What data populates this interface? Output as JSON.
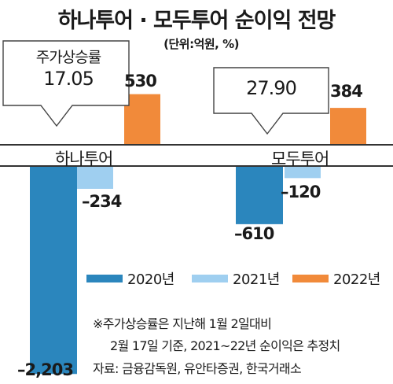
{
  "chart_data": {
    "type": "bar",
    "title": "하나투어 · 모두투어 순이익 전망",
    "unit": "(단위:억원, %)",
    "categories": [
      "하나투어",
      "모두투어"
    ],
    "series": [
      {
        "name": "2020년",
        "values": [
          -2203,
          -610
        ],
        "labels": [
          "–2,203",
          "–610"
        ],
        "color": "#2b86bd"
      },
      {
        "name": "2021년",
        "values": [
          -234,
          -120
        ],
        "labels": [
          "–234",
          "–120"
        ],
        "color": "#9fcff0"
      },
      {
        "name": "2022년",
        "values": [
          530,
          384
        ],
        "labels": [
          "530",
          "384"
        ],
        "color": "#f18a3a"
      }
    ],
    "callouts": [
      {
        "label": "주가상승률",
        "value": "17.05"
      },
      {
        "label": "",
        "value": "27.90"
      }
    ],
    "notes": [
      "※주가상승률은 지난해 1월 2일대비",
      "2월 17일 기준, 2021~22년 순이익은 추정치",
      "자료: 금융감독원, 유안타증권, 한국거래소"
    ]
  }
}
